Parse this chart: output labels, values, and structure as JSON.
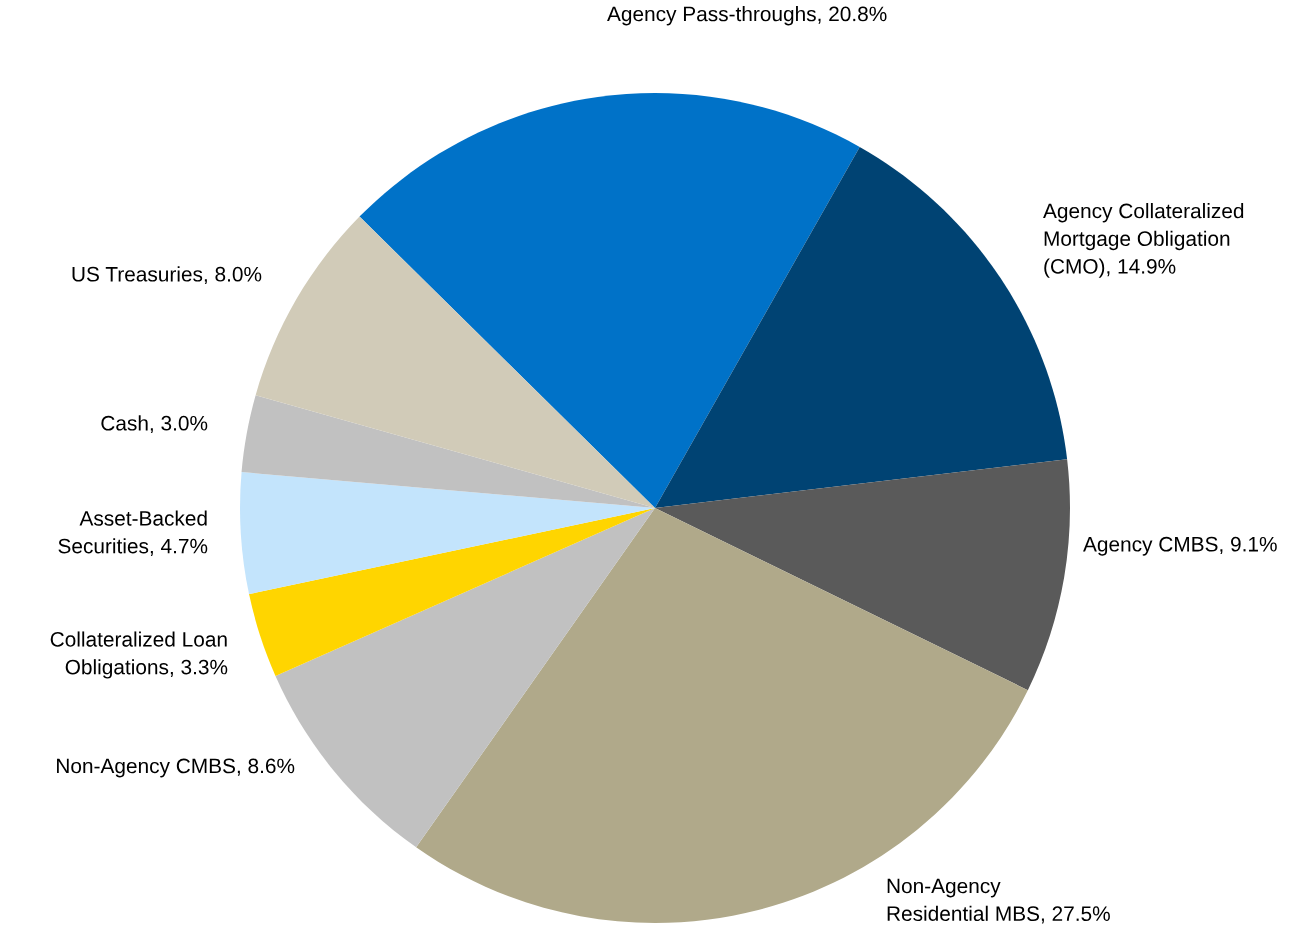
{
  "chart_data": {
    "type": "pie",
    "categories": [
      "Agency Pass-throughs",
      "Agency Collateralized\nMortgage Obligation\n(CMO)",
      "Agency CMBS",
      "Non-Agency\nResidential MBS",
      "Non-Agency CMBS",
      "Collateralized Loan\nObligations",
      "Asset-Backed\nSecurities",
      "Cash",
      "US Treasuries"
    ],
    "values": [
      20.8,
      14.9,
      9.1,
      27.5,
      8.6,
      3.3,
      4.7,
      3.0,
      8.0
    ],
    "value_labels": [
      "20.8%",
      "14.9%",
      "9.1%",
      "27.5%",
      "8.6%",
      "3.3%",
      "4.7%",
      "3.0%",
      "8.0%"
    ],
    "colors": [
      "#0072c8",
      "#004373",
      "#5a5a5a",
      "#b0a98a",
      "#c1c1c1",
      "#ffd500",
      "#c3e4fc",
      "#c1c1c1",
      "#d1cbb8"
    ]
  }
}
